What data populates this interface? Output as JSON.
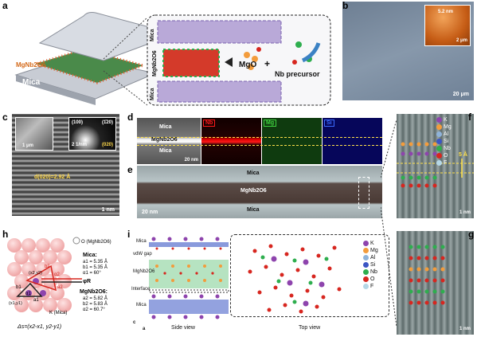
{
  "panel_labels": {
    "a": "a",
    "b": "b",
    "c": "c",
    "d": "d",
    "e": "e",
    "f": "f",
    "g": "g",
    "h": "h",
    "i": "i"
  },
  "panel_a": {
    "mica_top": "Mica",
    "mica_bottom": "Mica",
    "film": "MgNb2O6",
    "zoom_mica_top": "Mica",
    "zoom_mica_bottom": "Mica",
    "zoom_film": "MgNb2O6",
    "mgo": "MgO",
    "plus": "+",
    "nb_precursor": "Nb precursor"
  },
  "panel_b": {
    "inset_height": "5.2 nm",
    "inset_scale": "2 μm",
    "scale": "20 μm"
  },
  "panel_c": {
    "inset1_scale": "1 μm",
    "inset2_scale": "2 1/nm",
    "spot_100": "(100)",
    "spot_120": "(1̄20)",
    "spot_020": "(020)",
    "d_spacing": "d(020)=2.92 Å",
    "scale": "1 nm"
  },
  "panel_d": {
    "layer_top": "Mica",
    "layer_film": "MgNb2O6",
    "layer_bottom": "Mica",
    "scale": "20 nm",
    "nb": "Nb",
    "mg": "Mg",
    "si": "Si",
    "colors": {
      "nb": "#ff1a1a",
      "mg": "#3fd13f",
      "si": "#3b6bff"
    }
  },
  "panel_e": {
    "top": "Mica",
    "film": "MgNb2O6",
    "bottom": "Mica",
    "scale": "20 nm"
  },
  "panel_f": {
    "spacing": "5 Å",
    "scale": "1 nm"
  },
  "panel_g": {
    "scale": "1 nm"
  },
  "legend_f": [
    {
      "sym": "K",
      "color": "#8e44ad"
    },
    {
      "sym": "Mg",
      "color": "#f39c3c"
    },
    {
      "sym": "Al",
      "color": "#8fb3d9"
    },
    {
      "sym": "Si",
      "color": "#3b56c4"
    },
    {
      "sym": "Nb",
      "color": "#2eae4e"
    },
    {
      "sym": "O",
      "color": "#d7261f"
    },
    {
      "sym": "F",
      "color": "#b5d7e6"
    }
  ],
  "panel_h": {
    "o_label": "O (MgNb2O6)",
    "k_label": "K (Mica)",
    "mica_title": "Mica:",
    "mica_a1": "a1 = 5.35 Å",
    "mica_b1": "b1 = 5.35 Å",
    "mica_angle": "α1 = 60°",
    "film_title": "MgNb2O6:",
    "film_a2": "a2 = 5.82 Å",
    "film_b2": "b2 = 5.83 Å",
    "film_angle": "α2 = 60.7°",
    "phi": "φR",
    "p1": "(x1,y1)",
    "p2": "(x2,y2)",
    "a1": "a1",
    "b1": "b1",
    "a2": "a2",
    "b2": "b2",
    "alpha1": "α1",
    "alpha2": "α2",
    "delta": "Δs=(x2-x1, y2-y1)"
  },
  "panel_i": {
    "mica": "Mica",
    "vdw": "vdW gap",
    "film": "MgNb2O6",
    "interface": "Interface",
    "mica2": "Mica",
    "side": "Side view",
    "top": "Top view",
    "axis_c": "c",
    "axis_a": "a",
    "legend": [
      {
        "sym": "K",
        "color": "#8e44ad"
      },
      {
        "sym": "Mg",
        "color": "#f39c3c"
      },
      {
        "sym": "Al",
        "color": "#8fb3d9"
      },
      {
        "sym": "Si",
        "color": "#3b56c4"
      },
      {
        "sym": "Nb",
        "color": "#2eae4e"
      },
      {
        "sym": "O",
        "color": "#d7261f"
      },
      {
        "sym": "F",
        "color": "#b5d7e6"
      }
    ]
  }
}
